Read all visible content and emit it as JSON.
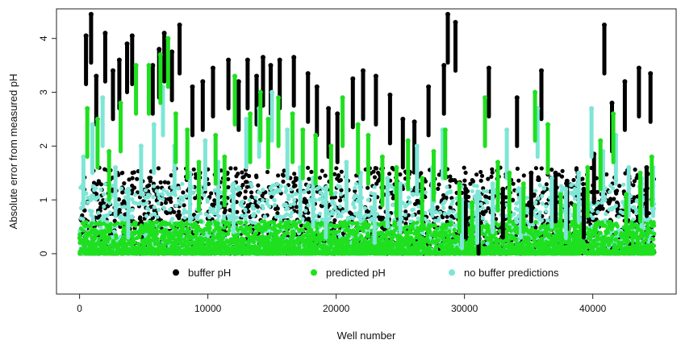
{
  "chart_data": {
    "type": "scatter",
    "xlabel": "Well number",
    "ylabel": "Absolute error from measured pH",
    "xlim": [
      -1800,
      46500
    ],
    "ylim": [
      -0.75,
      4.55
    ],
    "x_ticks": [
      0,
      10000,
      20000,
      30000,
      40000
    ],
    "x_tick_labels": [
      "0",
      "10000",
      "20000",
      "30000",
      "40000"
    ],
    "y_ticks": [
      0,
      1,
      2,
      3,
      4
    ],
    "y_tick_labels": [
      "0",
      "1",
      "2",
      "3",
      "4"
    ],
    "legend": {
      "position": "bottom-inside",
      "entries": [
        {
          "label": "buffer pH",
          "color": "#000000"
        },
        {
          "label": "predicted pH",
          "color": "#1fe01f"
        },
        {
          "label": "no buffer predictions",
          "color": "#7ee6d6"
        }
      ]
    },
    "series": [
      {
        "name": "buffer pH",
        "color": "#000000",
        "x": [
          500,
          900,
          1300,
          2000,
          2600,
          3100,
          3700,
          4100,
          5700,
          6200,
          6600,
          7200,
          7800,
          8800,
          9600,
          10400,
          11600,
          12400,
          13100,
          13800,
          14300,
          14900,
          15600,
          16700,
          17800,
          18500,
          19400,
          20100,
          21300,
          22100,
          23100,
          24200,
          25200,
          26100,
          27200,
          28400,
          28700,
          29300,
          30100,
          31100,
          31900,
          33000,
          34100,
          35200,
          36000,
          37100,
          38000,
          39300,
          40100,
          40900,
          41500,
          42500,
          43600,
          44200,
          44500
        ],
        "y": [
          4.05,
          4.45,
          3.3,
          4.1,
          3.4,
          3.6,
          3.9,
          4.05,
          3.5,
          3.8,
          4.1,
          3.75,
          4.25,
          3.1,
          3.2,
          3.45,
          3.6,
          3.2,
          3.6,
          3.3,
          3.65,
          3.5,
          3.6,
          3.65,
          3.35,
          3.1,
          2.7,
          2.6,
          3.25,
          3.4,
          3.3,
          2.95,
          2.5,
          2.45,
          3.1,
          3.5,
          4.45,
          4.3,
          1.2,
          0.7,
          3.45,
          1.2,
          2.9,
          1.5,
          3.4,
          1.5,
          1.35,
          1.2,
          1.85,
          4.25,
          2.8,
          3.2,
          3.45,
          1.6,
          3.35
        ]
      },
      {
        "name": "predicted pH",
        "color": "#1fe01f",
        "x": [
          600,
          1400,
          2300,
          3200,
          4400,
          5400,
          6300,
          6900,
          7500,
          8400,
          9300,
          10600,
          11300,
          12100,
          13300,
          14100,
          14700,
          15500,
          16600,
          17400,
          18400,
          19600,
          20500,
          21700,
          22500,
          23600,
          24700,
          25600,
          26700,
          27600,
          28500,
          29600,
          30600,
          31600,
          32600,
          33500,
          34600,
          35500,
          36500,
          37500,
          38600,
          39600,
          40600,
          41600,
          42600,
          43700,
          44600
        ],
        "y": [
          2.7,
          2.5,
          1.9,
          2.8,
          3.5,
          3.5,
          3.7,
          4.0,
          2.6,
          2.3,
          1.7,
          2.2,
          1.8,
          3.3,
          2.6,
          3.0,
          2.5,
          2.9,
          2.6,
          2.3,
          2.2,
          2.0,
          2.9,
          2.4,
          2.2,
          1.8,
          1.6,
          2.1,
          1.4,
          1.9,
          2.3,
          1.3,
          0.95,
          2.9,
          1.7,
          1.5,
          1.3,
          3.0,
          2.4,
          1.1,
          0.9,
          1.6,
          2.1,
          2.6,
          1.1,
          1.5,
          1.8
        ]
      },
      {
        "name": "no buffer predictions",
        "color": "#7ee6d6",
        "x": [
          300,
          1000,
          1800,
          2800,
          3800,
          4800,
          5800,
          6500,
          7400,
          8600,
          9800,
          10800,
          12000,
          13000,
          14000,
          15000,
          16200,
          17200,
          18200,
          19200,
          20800,
          21900,
          23000,
          24000,
          25000,
          26300,
          27500,
          28300,
          29800,
          31000,
          32200,
          33300,
          34400,
          35700,
          36800,
          37900,
          38900,
          39900,
          40800,
          41800,
          42800,
          43800,
          44700
        ],
        "y": [
          1.8,
          2.4,
          2.9,
          1.6,
          1.2,
          2.0,
          2.4,
          3.1,
          2.0,
          1.5,
          2.1,
          1.7,
          1.3,
          2.5,
          2.7,
          3.0,
          2.3,
          1.6,
          1.4,
          1.2,
          1.7,
          1.5,
          1.1,
          1.4,
          1.3,
          2.0,
          1.6,
          2.3,
          1.0,
          1.1,
          1.3,
          2.3,
          1.2,
          2.7,
          1.4,
          1.2,
          1.5,
          2.7,
          1.9,
          2.2,
          1.6,
          1.4,
          1.6
        ]
      }
    ]
  }
}
